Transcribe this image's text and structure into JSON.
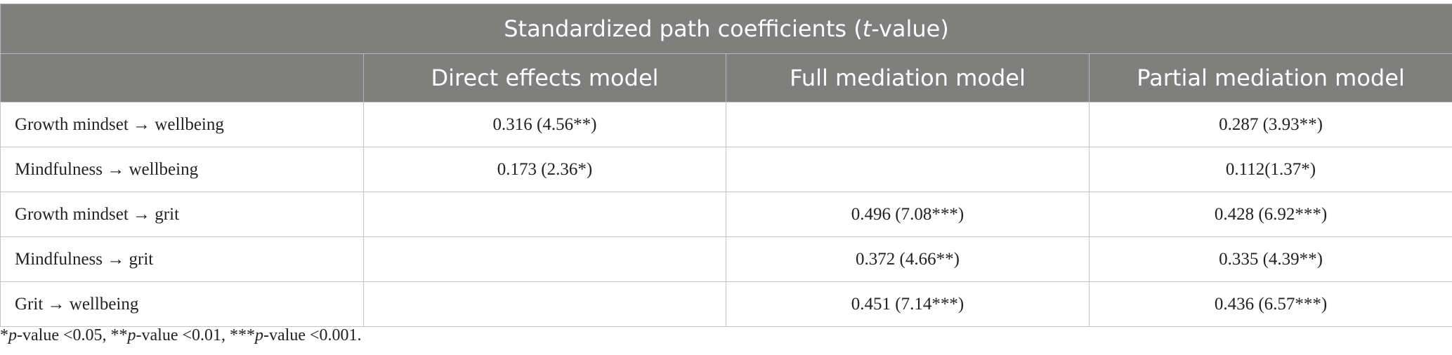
{
  "table": {
    "title": [
      {
        "text": "Standardized path coefficients ("
      },
      {
        "text": "t",
        "italic": true
      },
      {
        "text": "-value)"
      }
    ],
    "columns": [
      null,
      "Direct effects model",
      "Full mediation model",
      "Partial mediation model"
    ],
    "rows": [
      [
        "Growth mindset → wellbeing",
        "0.316 (4.56**)",
        null,
        "0.287 (3.93**)"
      ],
      [
        "Mindfulness → wellbeing",
        "0.173 (2.36*)",
        null,
        "0.112(1.37*)"
      ],
      [
        "Growth mindset → grit",
        null,
        "0.496 (7.08***)",
        "0.428 (6.92***)"
      ],
      [
        "Mindfulness → grit",
        null,
        "0.372 (4.66**)",
        "0.335 (4.39**)"
      ],
      [
        "Grit → wellbeing",
        null,
        "0.451 (7.14***)",
        "0.436 (6.57***)"
      ]
    ],
    "footnote": [
      {
        "text": "*"
      },
      {
        "text": "p",
        "italic": true
      },
      {
        "text": "-value <0.05, **"
      },
      {
        "text": "p",
        "italic": true
      },
      {
        "text": "-value <0.01, ***"
      },
      {
        "text": "p",
        "italic": true
      },
      {
        "text": "-value <0.001."
      }
    ]
  }
}
